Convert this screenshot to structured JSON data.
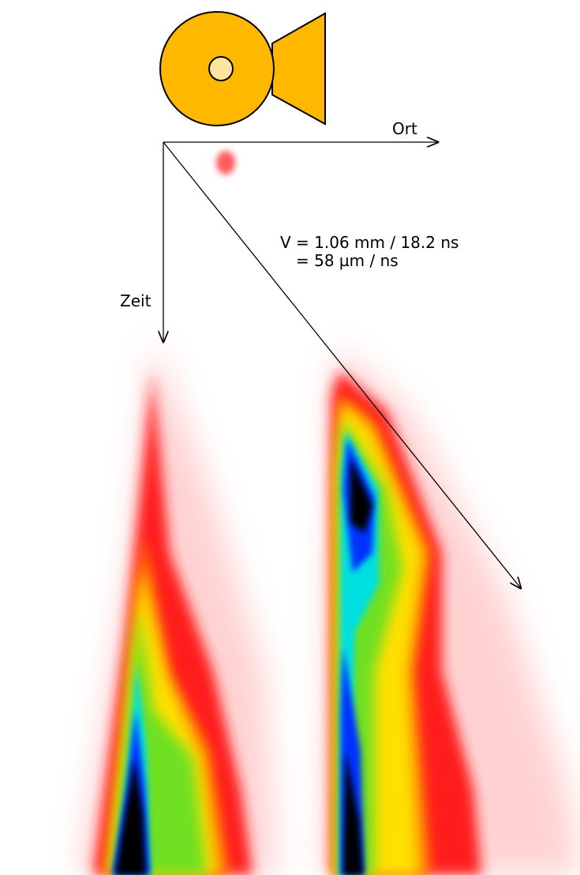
{
  "labels": {
    "x_axis": "Ort",
    "y_axis": "Zeit",
    "velocity_line1": "V = 1.06 mm / 18.2 ns",
    "velocity_line2": "= 58 µm / ns"
  }
}
